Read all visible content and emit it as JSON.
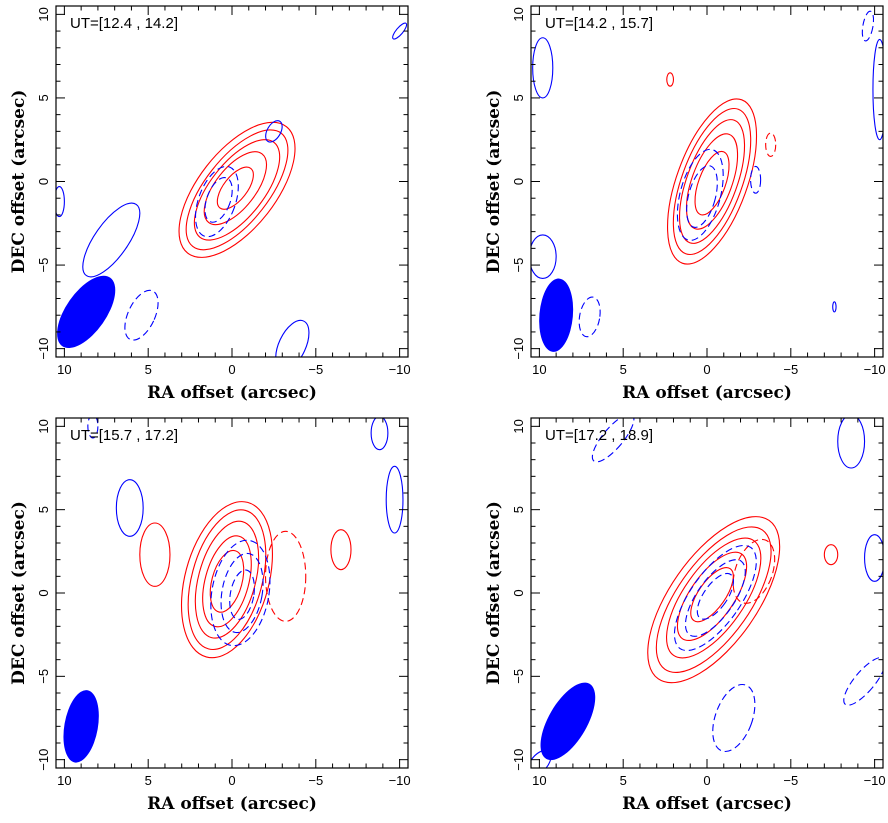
{
  "chart_data": [
    {
      "type": "contour",
      "title": "UT=[12.4 , 14.2]",
      "xlabel": "RA offset (arcsec)",
      "ylabel": "DEC offset (arcsec)",
      "xlim": [
        10.5,
        -10.5
      ],
      "ylim": [
        -10.5,
        10.5
      ],
      "xticks": [
        10,
        5,
        0,
        -5,
        -10
      ],
      "yticks": [
        -10,
        -5,
        0,
        5,
        10
      ],
      "beam": {
        "x": 8.7,
        "y": -7.8,
        "bmaj": 5.0,
        "bmin": 2.4,
        "pa": -35,
        "color": "#0000ff"
      },
      "positive_contours": {
        "color": "#ff0000",
        "ellipses": [
          {
            "x": -0.3,
            "y": -0.5,
            "a": 4.8,
            "b": 2.3,
            "pa": -38
          },
          {
            "x": -0.3,
            "y": -0.5,
            "a": 4.3,
            "b": 1.9,
            "pa": -38
          },
          {
            "x": -0.3,
            "y": -0.5,
            "a": 3.6,
            "b": 1.6,
            "pa": -38
          },
          {
            "x": -0.2,
            "y": -0.4,
            "a": 2.6,
            "b": 1.2,
            "pa": -38
          },
          {
            "x": -0.2,
            "y": -0.4,
            "a": 1.5,
            "b": 0.7,
            "pa": -38
          }
        ]
      },
      "negative_contours": {
        "color": "#0000ff",
        "ellipses": [
          {
            "x": 0.9,
            "y": -1.2,
            "a": 2.2,
            "b": 1.1,
            "pa": -20,
            "dashed": true
          },
          {
            "x": 0.8,
            "y": -1.1,
            "a": 1.4,
            "b": 0.7,
            "pa": -20,
            "dashed": true
          },
          {
            "x": 5.4,
            "y": -8.0,
            "a": 1.6,
            "b": 0.8,
            "pa": -25,
            "dashed": true
          },
          {
            "x": 7.2,
            "y": -3.5,
            "a": 2.6,
            "b": 1.0,
            "pa": -35,
            "dashed": false
          },
          {
            "x": -3.6,
            "y": -9.8,
            "a": 1.6,
            "b": 0.8,
            "pa": -25,
            "dashed": false
          },
          {
            "x": -2.5,
            "y": 3.0,
            "a": 0.7,
            "b": 0.4,
            "pa": -30,
            "dashed": false
          },
          {
            "x": 10.3,
            "y": -1.2,
            "a": 0.9,
            "b": 0.3,
            "pa": 0,
            "dashed": false
          },
          {
            "x": -10.0,
            "y": 9.0,
            "a": 0.6,
            "b": 0.2,
            "pa": -40,
            "dashed": false
          }
        ]
      }
    },
    {
      "type": "contour",
      "title": "UT=[14.2 , 15.7]",
      "xlabel": "RA offset (arcsec)",
      "ylabel": "DEC offset (arcsec)",
      "xlim": [
        10.5,
        -10.5
      ],
      "ylim": [
        -10.5,
        10.5
      ],
      "xticks": [
        10,
        5,
        0,
        -5,
        -10
      ],
      "yticks": [
        -10,
        -5,
        0,
        5,
        10
      ],
      "beam": {
        "x": 9.0,
        "y": -8.0,
        "bmaj": 4.4,
        "bmin": 2.0,
        "pa": -5,
        "color": "#0000ff"
      },
      "positive_contours": {
        "color": "#ff0000",
        "ellipses": [
          {
            "x": -0.3,
            "y": 0.0,
            "a": 5.2,
            "b": 2.1,
            "pa": -20
          },
          {
            "x": -0.3,
            "y": 0.0,
            "a": 4.6,
            "b": 1.8,
            "pa": -20
          },
          {
            "x": -0.3,
            "y": 0.0,
            "a": 3.9,
            "b": 1.5,
            "pa": -20
          },
          {
            "x": -0.3,
            "y": 0.0,
            "a": 3.0,
            "b": 1.2,
            "pa": -20
          },
          {
            "x": -0.3,
            "y": -0.1,
            "a": 2.0,
            "b": 0.8,
            "pa": -20
          },
          {
            "x": 2.2,
            "y": 6.1,
            "a": 0.4,
            "b": 0.2,
            "pa": 0
          },
          {
            "x": -3.8,
            "y": 2.2,
            "a": 0.7,
            "b": 0.3,
            "pa": 0,
            "dashed": true
          }
        ]
      },
      "negative_contours": {
        "color": "#0000ff",
        "ellipses": [
          {
            "x": 0.4,
            "y": -0.8,
            "a": 2.8,
            "b": 1.2,
            "pa": -15,
            "dashed": true
          },
          {
            "x": 0.3,
            "y": -0.9,
            "a": 1.9,
            "b": 0.8,
            "pa": -15,
            "dashed": true
          },
          {
            "x": -2.9,
            "y": 0.1,
            "a": 0.8,
            "b": 0.3,
            "pa": 0,
            "dashed": true
          },
          {
            "x": 7.0,
            "y": -8.1,
            "a": 1.2,
            "b": 0.6,
            "pa": -10,
            "dashed": true
          },
          {
            "x": 9.8,
            "y": 6.8,
            "a": 1.8,
            "b": 0.6,
            "pa": 0,
            "dashed": false
          },
          {
            "x": 9.8,
            "y": -4.5,
            "a": 1.3,
            "b": 0.8,
            "pa": 0,
            "dashed": false
          },
          {
            "x": -7.6,
            "y": -7.5,
            "a": 0.3,
            "b": 0.1,
            "pa": 0,
            "dashed": false
          },
          {
            "x": -9.6,
            "y": 9.3,
            "a": 0.9,
            "b": 0.3,
            "pa": -10,
            "dashed": true
          },
          {
            "x": -10.3,
            "y": 5.5,
            "a": 3.0,
            "b": 0.4,
            "pa": 0,
            "dashed": false
          }
        ]
      }
    },
    {
      "type": "contour",
      "title": "UT=[15.7 , 17.2]",
      "xlabel": "RA offset (arcsec)",
      "ylabel": "DEC offset (arcsec)",
      "xlim": [
        10.5,
        -10.5
      ],
      "ylim": [
        -10.5,
        10.5
      ],
      "xticks": [
        10,
        5,
        0,
        -5,
        -10
      ],
      "yticks": [
        -10,
        -5,
        0,
        5,
        10
      ],
      "beam": {
        "x": 9.0,
        "y": -8.0,
        "bmaj": 4.4,
        "bmin": 2.0,
        "pa": -10,
        "color": "#0000ff"
      },
      "positive_contours": {
        "color": "#ff0000",
        "ellipses": [
          {
            "x": 0.3,
            "y": 0.8,
            "a": 4.8,
            "b": 2.5,
            "pa": -15
          },
          {
            "x": 0.3,
            "y": 0.8,
            "a": 4.3,
            "b": 2.1,
            "pa": -15
          },
          {
            "x": 0.3,
            "y": 0.8,
            "a": 3.6,
            "b": 1.7,
            "pa": -15
          },
          {
            "x": 0.3,
            "y": 0.7,
            "a": 2.8,
            "b": 1.3,
            "pa": -15
          },
          {
            "x": 0.3,
            "y": 0.7,
            "a": 1.9,
            "b": 0.9,
            "pa": -15
          },
          {
            "x": 4.6,
            "y": 2.3,
            "a": 1.9,
            "b": 0.9,
            "pa": 0
          },
          {
            "x": -6.5,
            "y": 2.6,
            "a": 1.2,
            "b": 0.6,
            "pa": 0
          },
          {
            "x": -3.2,
            "y": 1.0,
            "a": 2.7,
            "b": 1.2,
            "pa": 0,
            "dashed": true
          }
        ]
      },
      "negative_contours": {
        "color": "#0000ff",
        "ellipses": [
          {
            "x": -0.5,
            "y": 0.0,
            "a": 3.2,
            "b": 1.7,
            "pa": -10,
            "dashed": true
          },
          {
            "x": -0.6,
            "y": 0.0,
            "a": 2.4,
            "b": 1.2,
            "pa": -10,
            "dashed": true
          },
          {
            "x": -0.6,
            "y": -0.1,
            "a": 1.5,
            "b": 0.7,
            "pa": -10,
            "dashed": true
          },
          {
            "x": 6.1,
            "y": 5.1,
            "a": 1.7,
            "b": 0.8,
            "pa": 0,
            "dashed": false
          },
          {
            "x": -9.7,
            "y": 5.6,
            "a": 2.0,
            "b": 0.5,
            "pa": 0,
            "dashed": false
          },
          {
            "x": -8.8,
            "y": 9.6,
            "a": 1.0,
            "b": 0.5,
            "pa": 0,
            "dashed": false
          },
          {
            "x": 8.3,
            "y": 10.0,
            "a": 0.7,
            "b": 0.3,
            "pa": 0,
            "dashed": true
          }
        ]
      }
    },
    {
      "type": "contour",
      "title": "UT=[17.2 , 18.9]",
      "xlabel": "RA offset (arcsec)",
      "ylabel": "DEC offset (arcsec)",
      "xlim": [
        10.5,
        -10.5
      ],
      "ylim": [
        -10.5,
        10.5
      ],
      "xticks": [
        10,
        5,
        0,
        -5,
        -10
      ],
      "yticks": [
        -10,
        -5,
        0,
        5,
        10
      ],
      "beam": {
        "x": 8.3,
        "y": -7.7,
        "bmaj": 5.2,
        "bmin": 2.3,
        "pa": -30,
        "color": "#0000ff"
      },
      "positive_contours": {
        "color": "#ff0000",
        "ellipses": [
          {
            "x": -0.4,
            "y": -0.4,
            "a": 5.8,
            "b": 2.6,
            "pa": -35
          },
          {
            "x": -0.4,
            "y": -0.4,
            "a": 5.1,
            "b": 2.2,
            "pa": -35
          },
          {
            "x": -0.4,
            "y": -0.3,
            "a": 4.2,
            "b": 1.8,
            "pa": -35
          },
          {
            "x": -0.3,
            "y": -0.2,
            "a": 3.1,
            "b": 1.3,
            "pa": -35
          },
          {
            "x": -0.3,
            "y": -0.1,
            "a": 1.9,
            "b": 0.8,
            "pa": -35
          },
          {
            "x": -7.4,
            "y": 2.3,
            "a": 0.6,
            "b": 0.4,
            "pa": 0
          },
          {
            "x": -2.8,
            "y": 1.3,
            "a": 2.0,
            "b": 1.1,
            "pa": -20,
            "dashed": true
          }
        ]
      },
      "negative_contours": {
        "color": "#0000ff",
        "ellipses": [
          {
            "x": -0.5,
            "y": -0.3,
            "a": 3.7,
            "b": 1.5,
            "pa": -35,
            "dashed": true
          },
          {
            "x": -0.5,
            "y": -0.3,
            "a": 2.7,
            "b": 1.1,
            "pa": -35,
            "dashed": true
          },
          {
            "x": -0.5,
            "y": -0.2,
            "a": 1.6,
            "b": 0.7,
            "pa": -35,
            "dashed": true
          },
          {
            "x": -1.6,
            "y": -7.5,
            "a": 2.1,
            "b": 1.1,
            "pa": -20,
            "dashed": true
          },
          {
            "x": 5.6,
            "y": 9.3,
            "a": 1.8,
            "b": 0.6,
            "pa": -40,
            "dashed": true
          },
          {
            "x": -9.4,
            "y": -5.3,
            "a": 1.8,
            "b": 0.6,
            "pa": -40,
            "dashed": true
          },
          {
            "x": -8.6,
            "y": 9.1,
            "a": 1.6,
            "b": 0.8,
            "pa": 0,
            "dashed": false
          },
          {
            "x": -10.0,
            "y": 2.1,
            "a": 1.4,
            "b": 0.6,
            "pa": 0,
            "dashed": false
          },
          {
            "x": 10.0,
            "y": -10.2,
            "a": 0.9,
            "b": 0.5,
            "pa": -40,
            "dashed": false
          }
        ]
      }
    }
  ]
}
